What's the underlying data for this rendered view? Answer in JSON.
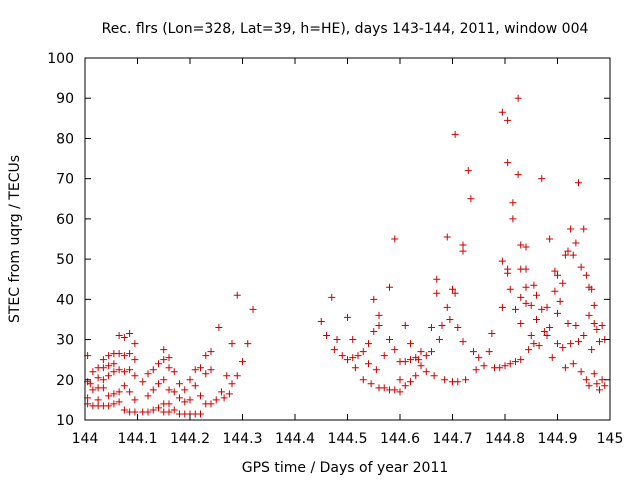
{
  "chart_data": {
    "type": "scatter",
    "title": "Rec. flrs (Lon=328, Lat=39, h=HE), days 143-144, 2011, window 004",
    "xlabel": "GPS time / Days of year 2011",
    "ylabel": "STEC from uqrg / TECUs",
    "xlim": [
      144,
      145
    ],
    "ylim": [
      10,
      100
    ],
    "x_ticks": [
      "144",
      "144.1",
      "144.2",
      "144.3",
      "144.4",
      "144.5",
      "144.6",
      "144.7",
      "144.8",
      "144.9",
      "145"
    ],
    "y_ticks": [
      "10",
      "20",
      "30",
      "40",
      "50",
      "60",
      "70",
      "80",
      "90",
      "100"
    ],
    "grid": false,
    "legend": "none",
    "marker": "plus",
    "color": "#cc0000",
    "points": [
      [
        144.005,
        26
      ],
      [
        144.005,
        19.5
      ],
      [
        144.005,
        15.5
      ],
      [
        144.005,
        14
      ],
      [
        144.01,
        19
      ],
      [
        144.015,
        22
      ],
      [
        144.015,
        17.5
      ],
      [
        144.015,
        13.5
      ],
      [
        144.025,
        23
      ],
      [
        144.025,
        20.5
      ],
      [
        144.025,
        18
      ],
      [
        144.025,
        15
      ],
      [
        144.025,
        13.5
      ],
      [
        144.035,
        25
      ],
      [
        144.035,
        23
      ],
      [
        144.035,
        20
      ],
      [
        144.035,
        18
      ],
      [
        144.035,
        13.5
      ],
      [
        144.045,
        26
      ],
      [
        144.045,
        23.5
      ],
      [
        144.045,
        21
      ],
      [
        144.045,
        16
      ],
      [
        144.045,
        13.5
      ],
      [
        144.055,
        26.5
      ],
      [
        144.055,
        24
      ],
      [
        144.055,
        22
      ],
      [
        144.055,
        16.5
      ],
      [
        144.055,
        14
      ],
      [
        144.065,
        31
      ],
      [
        144.065,
        26.5
      ],
      [
        144.065,
        22.5
      ],
      [
        144.065,
        17
      ],
      [
        144.065,
        14.5
      ],
      [
        144.075,
        30.5
      ],
      [
        144.075,
        26
      ],
      [
        144.075,
        22
      ],
      [
        144.075,
        18.5
      ],
      [
        144.075,
        12.5
      ],
      [
        144.085,
        31.5
      ],
      [
        144.085,
        26.5
      ],
      [
        144.085,
        22.5
      ],
      [
        144.085,
        17
      ],
      [
        144.085,
        12
      ],
      [
        144.095,
        29
      ],
      [
        144.095,
        25
      ],
      [
        144.095,
        21
      ],
      [
        144.095,
        15
      ],
      [
        144.095,
        12
      ],
      [
        144.11,
        19.5
      ],
      [
        144.11,
        12
      ],
      [
        144.12,
        21.5
      ],
      [
        144.12,
        16
      ],
      [
        144.12,
        12
      ],
      [
        144.13,
        22.5
      ],
      [
        144.13,
        17.5
      ],
      [
        144.13,
        12.5
      ],
      [
        144.14,
        24
      ],
      [
        144.14,
        19
      ],
      [
        144.14,
        13
      ],
      [
        144.15,
        27.5
      ],
      [
        144.15,
        25
      ],
      [
        144.15,
        20
      ],
      [
        144.15,
        14
      ],
      [
        144.15,
        12
      ],
      [
        144.16,
        25.5
      ],
      [
        144.16,
        23
      ],
      [
        144.16,
        17.5
      ],
      [
        144.16,
        14
      ],
      [
        144.16,
        12
      ],
      [
        144.17,
        22
      ],
      [
        144.17,
        17
      ],
      [
        144.17,
        12.5
      ],
      [
        144.18,
        19
      ],
      [
        144.18,
        15.5
      ],
      [
        144.18,
        11.5
      ],
      [
        144.19,
        17.5
      ],
      [
        144.19,
        14.5
      ],
      [
        144.19,
        11.5
      ],
      [
        144.2,
        20
      ],
      [
        144.2,
        15
      ],
      [
        144.2,
        11.5
      ],
      [
        144.21,
        22.5
      ],
      [
        144.21,
        18.5
      ],
      [
        144.21,
        11.5
      ],
      [
        144.22,
        23
      ],
      [
        144.22,
        16
      ],
      [
        144.22,
        11.5
      ],
      [
        144.23,
        26
      ],
      [
        144.23,
        21.5
      ],
      [
        144.23,
        14
      ],
      [
        144.24,
        27
      ],
      [
        144.24,
        22.5
      ],
      [
        144.24,
        14
      ],
      [
        144.25,
        15
      ],
      [
        144.255,
        33
      ],
      [
        144.26,
        17
      ],
      [
        144.265,
        15.5
      ],
      [
        144.27,
        21
      ],
      [
        144.275,
        16.5
      ],
      [
        144.28,
        29
      ],
      [
        144.28,
        19
      ],
      [
        144.29,
        41
      ],
      [
        144.29,
        21
      ],
      [
        144.3,
        24.5
      ],
      [
        144.31,
        29
      ],
      [
        144.32,
        37.5
      ],
      [
        144.45,
        34.5
      ],
      [
        144.46,
        31
      ],
      [
        144.47,
        40.5
      ],
      [
        144.475,
        27.5
      ],
      [
        144.48,
        30
      ],
      [
        144.49,
        26
      ],
      [
        144.5,
        35.5
      ],
      [
        144.5,
        25
      ],
      [
        144.51,
        30
      ],
      [
        144.51,
        25.5
      ],
      [
        144.515,
        23
      ],
      [
        144.52,
        26
      ],
      [
        144.53,
        27
      ],
      [
        144.53,
        20
      ],
      [
        144.54,
        29
      ],
      [
        144.54,
        24
      ],
      [
        144.545,
        19
      ],
      [
        144.55,
        40
      ],
      [
        144.55,
        32
      ],
      [
        144.555,
        22.5
      ],
      [
        144.56,
        36
      ],
      [
        144.56,
        33.5
      ],
      [
        144.56,
        18
      ],
      [
        144.57,
        26
      ],
      [
        144.57,
        18
      ],
      [
        144.58,
        43
      ],
      [
        144.58,
        30
      ],
      [
        144.58,
        17.5
      ],
      [
        144.59,
        55
      ],
      [
        144.59,
        27.5
      ],
      [
        144.59,
        17.5
      ],
      [
        144.6,
        24.5
      ],
      [
        144.6,
        20
      ],
      [
        144.6,
        17
      ],
      [
        144.61,
        33.5
      ],
      [
        144.61,
        24.5
      ],
      [
        144.61,
        18.5
      ],
      [
        144.62,
        29
      ],
      [
        144.62,
        25
      ],
      [
        144.62,
        19.5
      ],
      [
        144.63,
        25.5
      ],
      [
        144.63,
        21
      ],
      [
        144.635,
        25
      ],
      [
        144.64,
        27
      ],
      [
        144.64,
        23.5
      ],
      [
        144.65,
        26
      ],
      [
        144.65,
        22
      ],
      [
        144.66,
        33
      ],
      [
        144.66,
        27
      ],
      [
        144.665,
        21
      ],
      [
        144.67,
        45
      ],
      [
        144.67,
        41.5
      ],
      [
        144.675,
        30
      ],
      [
        144.68,
        33.5
      ],
      [
        144.685,
        20
      ],
      [
        144.69,
        55.5
      ],
      [
        144.69,
        38
      ],
      [
        144.695,
        35
      ],
      [
        144.7,
        42.5
      ],
      [
        144.7,
        19.5
      ],
      [
        144.705,
        81
      ],
      [
        144.705,
        41.5
      ],
      [
        144.71,
        33
      ],
      [
        144.71,
        19.5
      ],
      [
        144.72,
        53.5
      ],
      [
        144.72,
        52
      ],
      [
        144.72,
        29.5
      ],
      [
        144.725,
        20
      ],
      [
        144.73,
        72
      ],
      [
        144.735,
        65
      ],
      [
        144.74,
        27
      ],
      [
        144.745,
        22.5
      ],
      [
        144.75,
        25.5
      ],
      [
        144.76,
        23.5
      ],
      [
        144.77,
        27
      ],
      [
        144.775,
        31.5
      ],
      [
        144.78,
        23
      ],
      [
        144.79,
        23
      ],
      [
        144.795,
        86.5
      ],
      [
        144.795,
        49.5
      ],
      [
        144.795,
        38
      ],
      [
        144.8,
        23.5
      ],
      [
        144.805,
        84.5
      ],
      [
        144.805,
        74
      ],
      [
        144.805,
        47.5
      ],
      [
        144.805,
        46.5
      ],
      [
        144.81,
        42.5
      ],
      [
        144.81,
        24
      ],
      [
        144.815,
        64
      ],
      [
        144.815,
        60
      ],
      [
        144.82,
        37.5
      ],
      [
        144.82,
        24.5
      ],
      [
        144.825,
        90
      ],
      [
        144.825,
        71
      ],
      [
        144.83,
        53.5
      ],
      [
        144.83,
        47.5
      ],
      [
        144.83,
        40.5
      ],
      [
        144.83,
        34
      ],
      [
        144.83,
        25
      ],
      [
        144.84,
        53
      ],
      [
        144.84,
        47.5
      ],
      [
        144.84,
        43
      ],
      [
        144.84,
        39
      ],
      [
        144.845,
        27.5
      ],
      [
        144.85,
        38.5
      ],
      [
        144.85,
        31
      ],
      [
        144.855,
        43.5
      ],
      [
        144.855,
        29
      ],
      [
        144.86,
        41
      ],
      [
        144.86,
        35
      ],
      [
        144.865,
        28.5
      ],
      [
        144.87,
        70
      ],
      [
        144.87,
        37.5
      ],
      [
        144.875,
        32
      ],
      [
        144.88,
        38
      ],
      [
        144.88,
        31
      ],
      [
        144.885,
        55
      ],
      [
        144.885,
        33
      ],
      [
        144.89,
        25.5
      ],
      [
        144.895,
        47
      ],
      [
        144.895,
        42
      ],
      [
        144.9,
        46
      ],
      [
        144.9,
        36.5
      ],
      [
        144.9,
        29
      ],
      [
        144.905,
        39.5
      ],
      [
        144.91,
        44
      ],
      [
        144.91,
        28
      ],
      [
        144.915,
        51
      ],
      [
        144.915,
        23
      ],
      [
        144.92,
        52
      ],
      [
        144.92,
        34
      ],
      [
        144.925,
        57.5
      ],
      [
        144.925,
        29
      ],
      [
        144.93,
        51
      ],
      [
        144.93,
        24
      ],
      [
        144.935,
        54
      ],
      [
        144.935,
        33.5
      ],
      [
        144.94,
        69
      ],
      [
        144.94,
        29.5
      ],
      [
        144.945,
        48
      ],
      [
        144.945,
        22
      ],
      [
        144.95,
        57.5
      ],
      [
        144.95,
        31
      ],
      [
        144.955,
        46
      ],
      [
        144.955,
        20
      ],
      [
        144.96,
        43
      ],
      [
        144.96,
        36
      ],
      [
        144.96,
        18.5
      ],
      [
        144.965,
        42.5
      ],
      [
        144.965,
        27.5
      ],
      [
        144.97,
        38.5
      ],
      [
        144.97,
        34
      ],
      [
        144.97,
        21.5
      ],
      [
        144.975,
        32.5
      ],
      [
        144.975,
        19
      ],
      [
        144.98,
        29.5
      ],
      [
        144.98,
        17.5
      ],
      [
        144.985,
        33.5
      ],
      [
        144.985,
        20
      ],
      [
        144.99,
        30
      ],
      [
        144.99,
        18.5
      ]
    ]
  }
}
